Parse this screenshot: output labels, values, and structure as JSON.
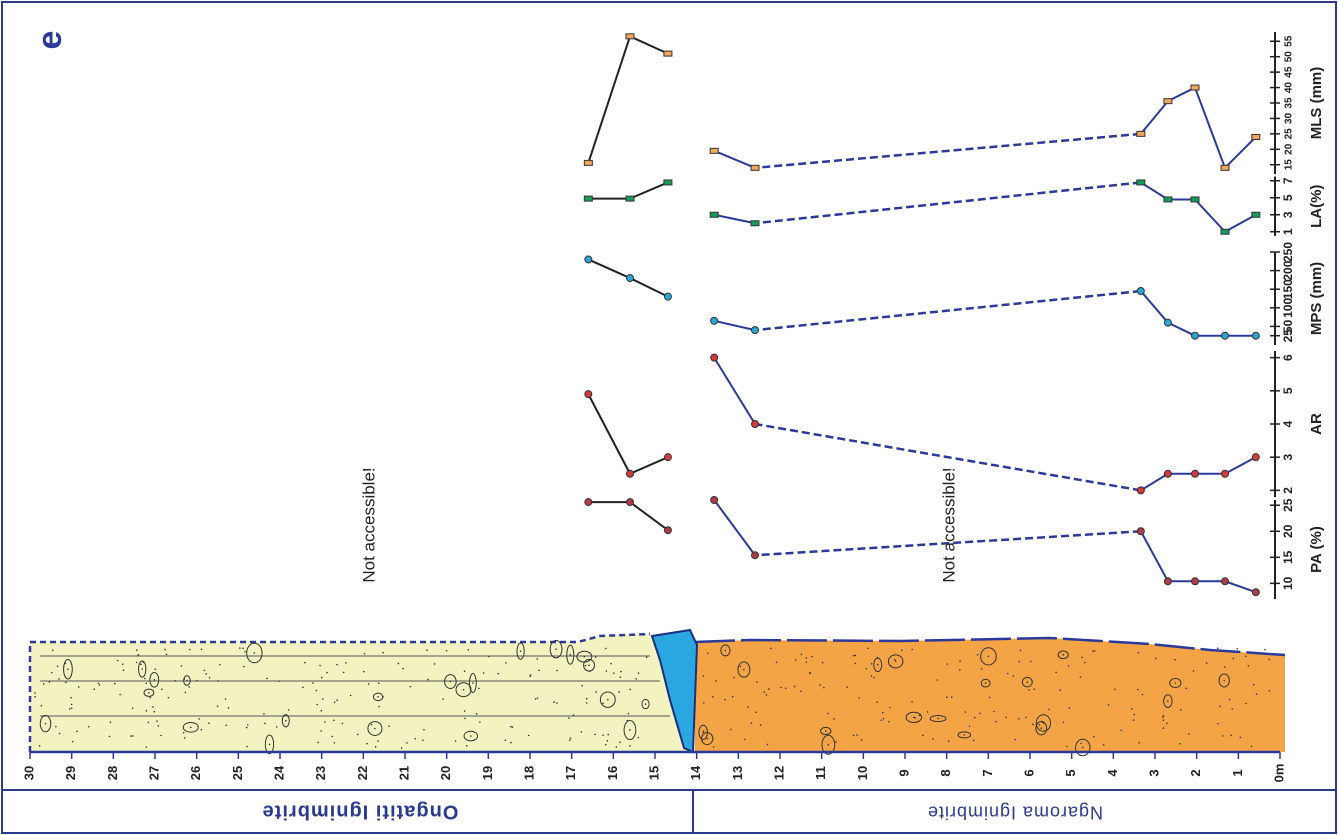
{
  "panel_label": "e",
  "formations": [
    "Ongatiti Ignimbrite",
    "Ngaroma Ignimbrite"
  ],
  "annotations": [
    "Not accessible!",
    "Not accessible!"
  ],
  "height_axis": {
    "xlim": [
      0,
      30
    ],
    "xticks": [
      {
        "value": 0,
        "label": "0m"
      },
      1,
      2,
      3,
      4,
      5,
      6,
      7,
      8,
      9,
      10,
      11,
      12,
      13,
      14,
      15,
      16,
      17,
      18,
      19,
      20,
      21,
      22,
      23,
      24,
      25,
      26,
      27,
      28,
      29,
      30
    ]
  },
  "chart_data": [
    {
      "type": "line",
      "ylabel": "MLS (mm)",
      "marker": "square",
      "marker_color": "#f2a65a",
      "ylim": [
        12,
        58
      ],
      "yticks": [
        15,
        20,
        25,
        30,
        35,
        40,
        45,
        50,
        55
      ],
      "x": [
        0.58,
        1.32,
        2.04,
        2.69,
        3.34,
        12.6,
        13.58,
        14.69,
        15.6,
        16.6
      ],
      "series": [
        {
          "color": "#2b3a9a",
          "values": [
            24,
            14,
            40,
            35.6,
            25,
            14,
            19.5,
            null,
            null,
            null
          ]
        },
        {
          "color": "#222222",
          "values": [
            null,
            null,
            null,
            null,
            null,
            null,
            null,
            51,
            56.6,
            15.6
          ]
        }
      ]
    },
    {
      "type": "line",
      "ylabel": "LA(%)",
      "marker": "square",
      "marker_color": "#1a9a5a",
      "ylim": [
        0.5,
        7.5
      ],
      "yticks": [
        1,
        3,
        5,
        7
      ],
      "x": [
        0.58,
        1.32,
        2.04,
        2.69,
        3.34,
        12.6,
        13.58,
        14.69,
        15.6,
        16.6
      ],
      "series": [
        {
          "color": "#2b3a9a",
          "values": [
            3,
            1,
            4.8,
            4.8,
            6.8,
            2,
            3,
            null,
            null,
            null
          ]
        },
        {
          "color": "#222222",
          "values": [
            null,
            null,
            null,
            null,
            null,
            null,
            null,
            6.8,
            4.9,
            4.9
          ]
        }
      ]
    },
    {
      "type": "line",
      "ylabel": "MPS (mm)",
      "marker": "circle",
      "marker_color": "#2aa7d6",
      "ylim": [
        0,
        250
      ],
      "yticks": [
        25,
        50,
        100,
        150,
        200,
        250
      ],
      "x": [
        0.58,
        1.32,
        2.04,
        2.69,
        3.34,
        12.6,
        13.58,
        14.69,
        15.6,
        16.6
      ],
      "series": [
        {
          "color": "#2b3a9a",
          "values": [
            25,
            25,
            25,
            60,
            145,
            40,
            65,
            null,
            null,
            null
          ]
        },
        {
          "color": "#222222",
          "values": [
            null,
            null,
            null,
            null,
            null,
            null,
            null,
            130,
            180,
            230
          ]
        }
      ]
    },
    {
      "type": "line",
      "ylabel": "AR",
      "marker": "circle",
      "marker_color": "#d13a3a",
      "ylim": [
        1.8,
        6.2
      ],
      "yticks": [
        2,
        3,
        4,
        5,
        6
      ],
      "x": [
        0.58,
        1.32,
        2.04,
        2.69,
        3.34,
        12.6,
        13.58,
        14.69,
        15.6,
        16.6
      ],
      "series": [
        {
          "color": "#2b3a9a",
          "values": [
            3,
            2.5,
            2.5,
            2.5,
            2,
            4,
            6,
            null,
            null,
            null
          ]
        },
        {
          "color": "#222222",
          "values": [
            null,
            null,
            null,
            null,
            null,
            null,
            null,
            3,
            2.5,
            4.9
          ]
        }
      ]
    },
    {
      "type": "line",
      "ylabel": "PA (%)",
      "marker": "circle",
      "marker_color": "#b03a4a",
      "ylim": [
        7,
        26
      ],
      "yticks": [
        10,
        15,
        20,
        25
      ],
      "x": [
        0.58,
        1.32,
        2.04,
        2.69,
        3.34,
        12.6,
        13.58,
        14.69,
        15.6,
        16.6
      ],
      "series": [
        {
          "color": "#2b3a9a",
          "values": [
            8.3,
            10.4,
            10.4,
            10.4,
            20,
            15.4,
            26,
            null,
            null,
            null
          ]
        },
        {
          "color": "#222222",
          "values": [
            null,
            null,
            null,
            null,
            null,
            null,
            null,
            20.2,
            25.6,
            25.6
          ]
        }
      ]
    }
  ]
}
